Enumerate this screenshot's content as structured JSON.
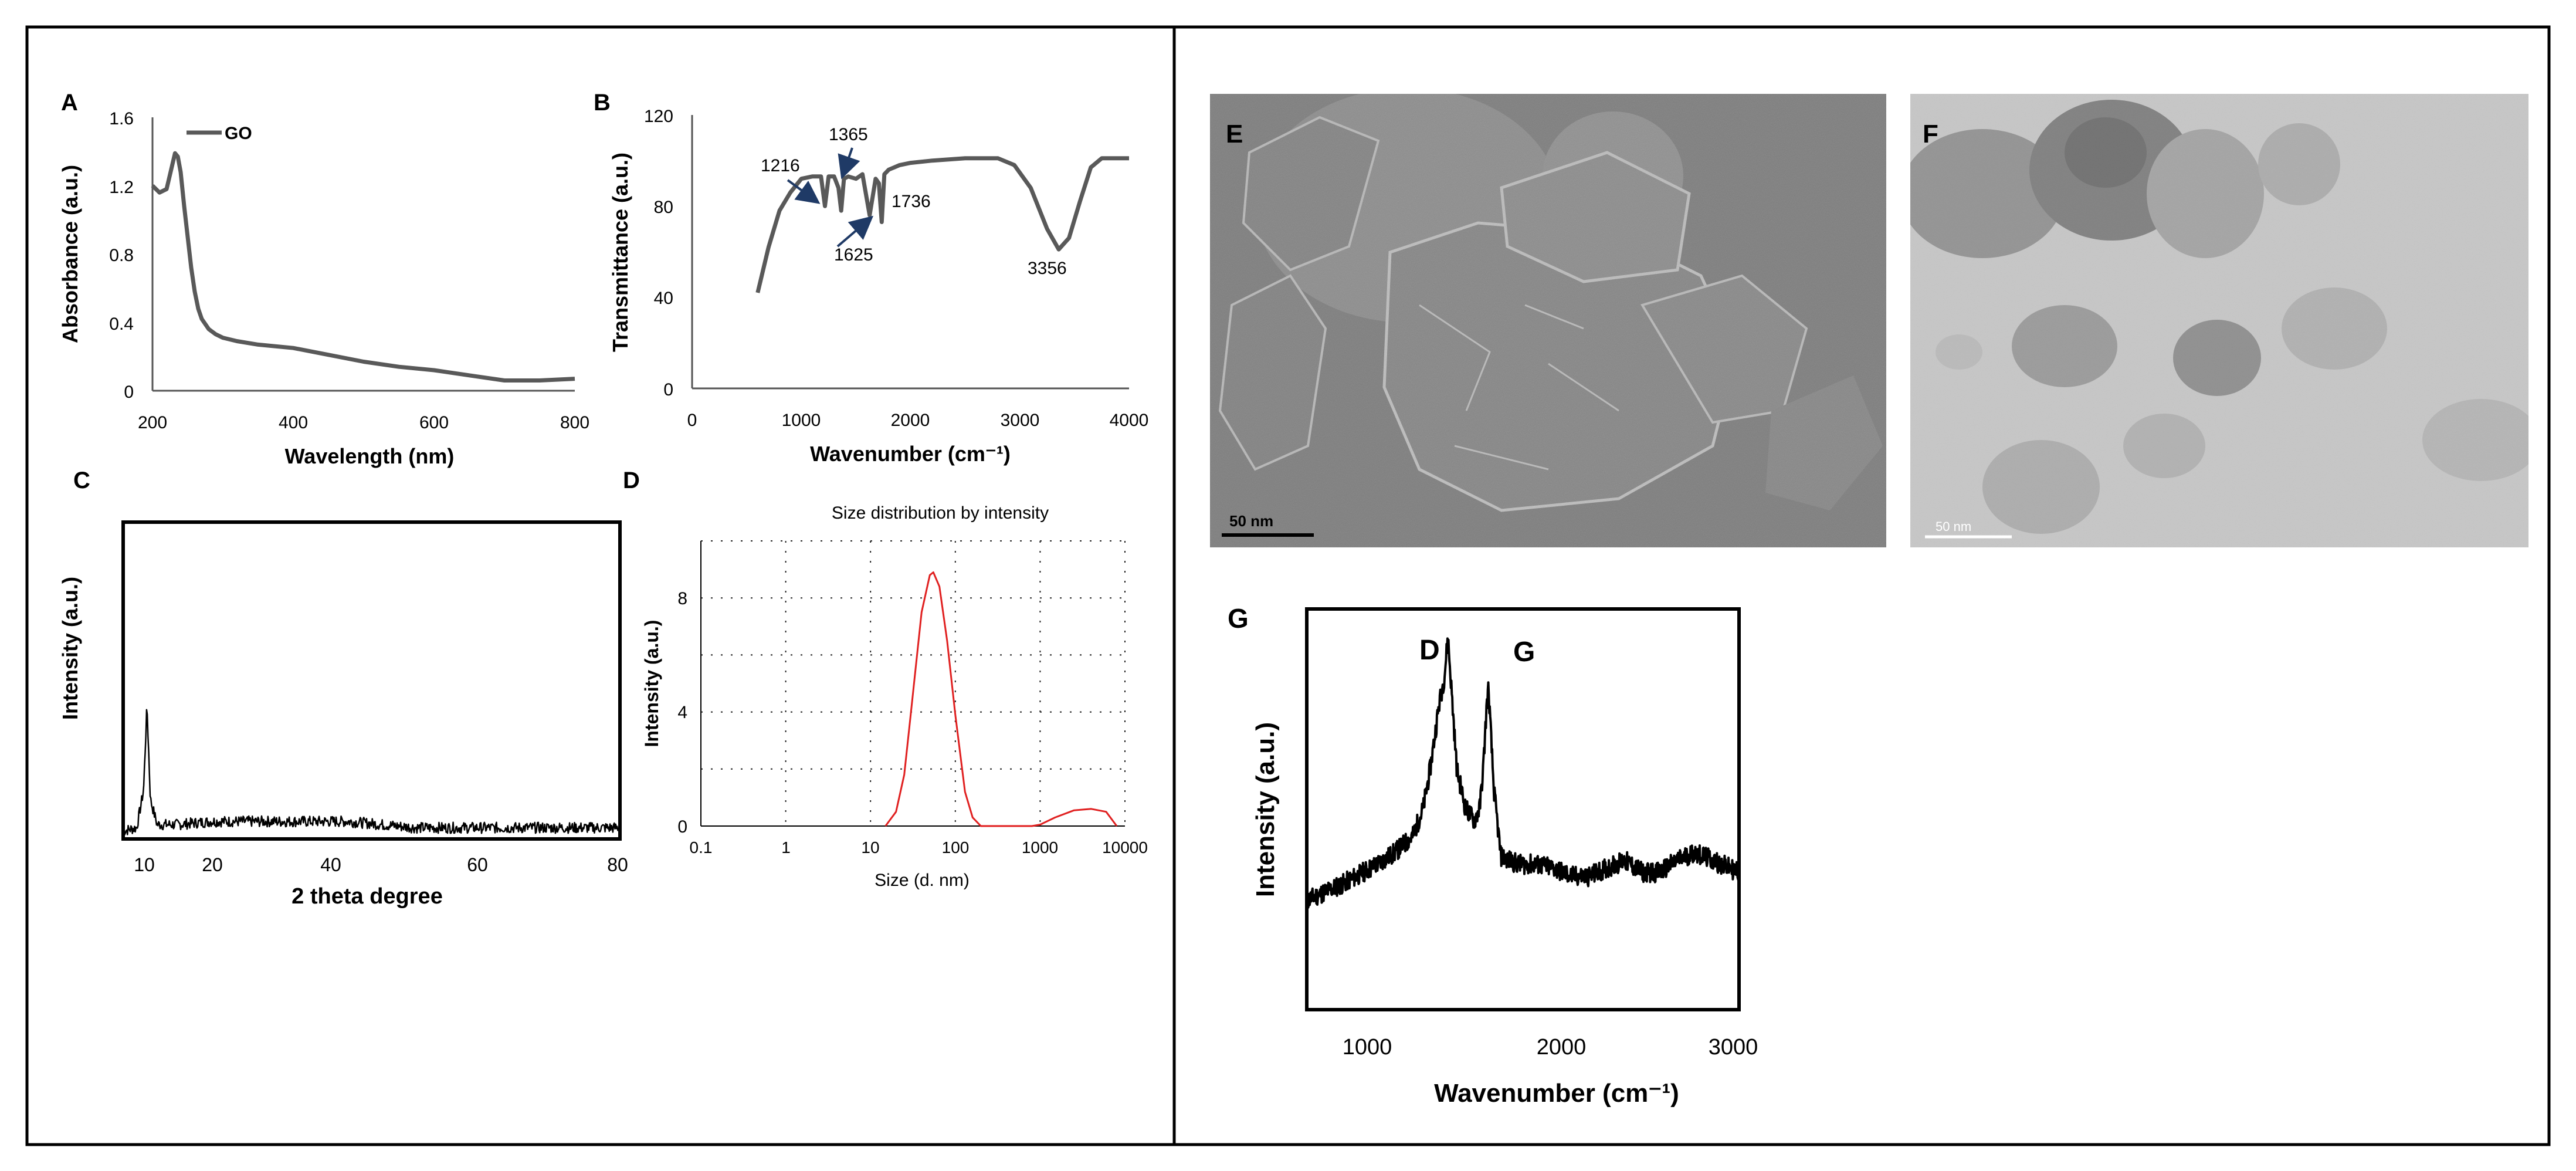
{
  "figure": {
    "divider": true
  },
  "panels": {
    "A": {
      "letter": "A",
      "chart_data": {
        "type": "line",
        "xlabel": "Wavelength (nm)",
        "ylabel": "Absorbance (a.u.)",
        "xlim": [
          200,
          800
        ],
        "ylim": [
          0,
          1.6
        ],
        "xticks": [
          "200",
          "400",
          "600",
          "800"
        ],
        "yticks": [
          "0",
          "0.4",
          "0.8",
          "1.2",
          "1.6"
        ],
        "series": [
          {
            "name": "GO",
            "color": "#595959",
            "x": [
              200,
              210,
              220,
              228,
              232,
              236,
              240,
              245,
              250,
              255,
              260,
              265,
              270,
              280,
              290,
              300,
              320,
              350,
              400,
              450,
              500,
              550,
              600,
              650,
              700,
              750,
              800
            ],
            "y": [
              1.2,
              1.16,
              1.18,
              1.32,
              1.39,
              1.37,
              1.28,
              1.08,
              0.9,
              0.72,
              0.58,
              0.48,
              0.42,
              0.36,
              0.33,
              0.31,
              0.29,
              0.27,
              0.25,
              0.21,
              0.17,
              0.14,
              0.12,
              0.09,
              0.06,
              0.06,
              0.07
            ]
          }
        ],
        "legend": "top-left"
      }
    },
    "B": {
      "letter": "B",
      "chart_data": {
        "type": "line",
        "xlabel": "Wavenumber (cm⁻¹)",
        "ylabel": "Transmittance (a.u.)",
        "xlim": [
          0,
          4000
        ],
        "ylim": [
          0,
          120
        ],
        "xticks": [
          "0",
          "1000",
          "2000",
          "3000",
          "4000"
        ],
        "yticks": [
          "0",
          "40",
          "80",
          "120"
        ],
        "series": [
          {
            "color": "#595959",
            "x": [
              600,
              700,
              800,
              900,
              1000,
              1100,
              1180,
              1216,
              1250,
              1300,
              1340,
              1365,
              1390,
              1430,
              1500,
              1560,
              1625,
              1680,
              1710,
              1736,
              1760,
              1800,
              1900,
              2000,
              2200,
              2500,
              2800,
              2950,
              3100,
              3250,
              3356,
              3450,
              3550,
              3650,
              3750,
              4000
            ],
            "y": [
              42,
              62,
              78,
              86,
              92,
              93,
              93,
              80,
              93,
              93,
              88,
              78,
              92,
              93,
              92,
              94,
              76,
              92,
              90,
              73,
              94,
              96,
              98,
              99,
              100,
              101,
              101,
              98,
              88,
              70,
              61,
              66,
              82,
              97,
              101,
              101
            ]
          }
        ],
        "annotations": [
          "1216",
          "1365",
          "1625",
          "1736",
          "3356"
        ]
      }
    },
    "C": {
      "letter": "C",
      "chart_data": {
        "type": "line",
        "xlabel": "2 theta degree",
        "ylabel": "Intensity (a.u.)",
        "xlim": [
          7,
          80
        ],
        "xticks": [
          "10",
          "20",
          "40",
          "60",
          "80"
        ],
        "grid": false,
        "series": [
          {
            "color": "#000000",
            "x": [
              7,
              9,
              10,
              10.5,
              11,
              12,
              15,
              20,
              25,
              30,
              40,
              50,
              60,
              70,
              80
            ],
            "y": [
              0.02,
              0.03,
              0.15,
              0.42,
              0.12,
              0.04,
              0.04,
              0.05,
              0.05,
              0.05,
              0.05,
              0.03,
              0.03,
              0.03,
              0.03
            ]
          }
        ]
      }
    },
    "D": {
      "letter": "D",
      "chart_data": {
        "type": "line",
        "title": "Size distribution by intensity",
        "xlabel": "Size (d. nm)",
        "ylabel": "Intensity (a.u.)",
        "xscale": "log",
        "xlim": [
          0.1,
          10000
        ],
        "ylim": [
          0,
          10
        ],
        "xticks": [
          "0.1",
          "1",
          "10",
          "100",
          "1000",
          "10000"
        ],
        "yticks": [
          "0",
          "4",
          "8"
        ],
        "grid": true,
        "series": [
          {
            "color": "#e02020",
            "x": [
              15,
              20,
              25,
              30,
              40,
              50,
              55,
              65,
              80,
              100,
              130,
              160,
              200,
              300,
              500,
              800,
              1000,
              1500,
              2500,
              4000,
              6000,
              8000
            ],
            "y": [
              0,
              0.5,
              1.8,
              4.0,
              7.5,
              8.8,
              8.9,
              8.4,
              6.5,
              3.9,
              1.2,
              0.3,
              0,
              0,
              0,
              0,
              0.05,
              0.3,
              0.55,
              0.6,
              0.5,
              0
            ]
          }
        ]
      }
    },
    "E": {
      "letter": "E",
      "scalebar": "50 nm"
    },
    "F": {
      "letter": "F",
      "scalebar": "50 nm"
    },
    "G": {
      "letter": "G",
      "chart_data": {
        "type": "line",
        "xlabel": "Wavenumber (cm⁻¹)",
        "ylabel": "Intensity (a.u.)",
        "xlim": [
          600,
          3050
        ],
        "xticks": [
          "1000",
          "2000",
          "3000"
        ],
        "annotations": [
          "D",
          "G"
        ],
        "series": [
          {
            "color": "#000000",
            "x": [
              600,
              800,
              1000,
              1100,
              1200,
              1260,
              1300,
              1350,
              1380,
              1400,
              1420,
              1450,
              1500,
              1550,
              1580,
              1600,
              1620,
              1630,
              1660,
              1700,
              1800,
              1900,
              2000,
              2100,
              2200,
              2300,
              2400,
              2500,
              2600,
              2700,
              2800,
              2900,
              3050
            ],
            "y": [
              0.27,
              0.31,
              0.36,
              0.39,
              0.43,
              0.5,
              0.6,
              0.76,
              0.83,
              0.93,
              0.8,
              0.6,
              0.5,
              0.47,
              0.5,
              0.6,
              0.76,
              0.8,
              0.55,
              0.38,
              0.36,
              0.36,
              0.35,
              0.33,
              0.33,
              0.35,
              0.37,
              0.34,
              0.34,
              0.37,
              0.39,
              0.37,
              0.34
            ]
          }
        ]
      }
    }
  }
}
